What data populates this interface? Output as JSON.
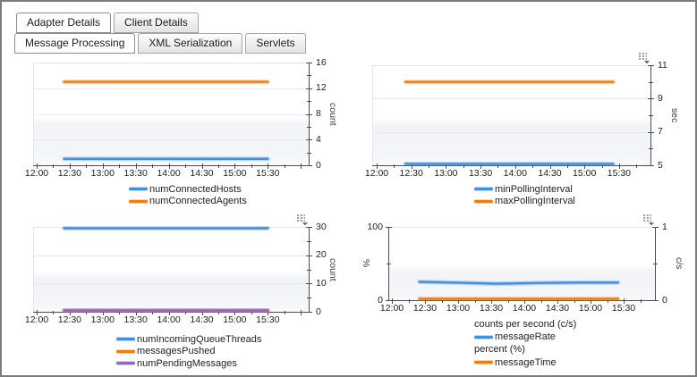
{
  "tabs_primary": [
    {
      "label": "Adapter Details",
      "active": true
    },
    {
      "label": "Client Details",
      "active": false
    }
  ],
  "tabs_secondary": [
    {
      "label": "Message Processing",
      "active": true
    },
    {
      "label": "XML Serialization",
      "active": false
    },
    {
      "label": "Servlets",
      "active": false
    }
  ],
  "colors": {
    "series_blue": "#4090e2",
    "series_orange": "#ee7d0e",
    "series_purple": "#8d68c5",
    "axis": "#4d4d4d",
    "grid": "#e7e9ed",
    "plot_band": "#f2f4f8",
    "text": "#222222"
  },
  "chart_data": [
    {
      "type": "line",
      "position": "top-left",
      "x_tick_labels": [
        "12:00",
        "12:30",
        "13:00",
        "13:30",
        "14:00",
        "14:30",
        "15:00",
        "15:30"
      ],
      "x_range": [
        "12:00",
        "16:00"
      ],
      "y_axes": [
        {
          "side": "right",
          "label": "count",
          "min": 0,
          "max": 16,
          "major_ticks": [
            0,
            4,
            8,
            12,
            16
          ],
          "minor_step": 2
        }
      ],
      "series": [
        {
          "name": "numConnectedHosts",
          "color": "#4090e2",
          "axis": "right",
          "value": 1,
          "x_start": "12:25",
          "x_end": "15:30"
        },
        {
          "name": "numConnectedAgents",
          "color": "#ee7d0e",
          "axis": "right",
          "value": 13,
          "x_start": "12:25",
          "x_end": "15:30"
        }
      ],
      "options_icon": false
    },
    {
      "type": "line",
      "position": "top-right",
      "x_tick_labels": [
        "12:00",
        "12:30",
        "13:00",
        "13:30",
        "14:00",
        "14:30",
        "15:00",
        "15:30"
      ],
      "x_range": [
        "12:00",
        "16:00"
      ],
      "y_axes": [
        {
          "side": "right",
          "label": "sec",
          "min": 5,
          "max": 11,
          "major_ticks": [
            5,
            7,
            9,
            11
          ],
          "minor_step": 1
        }
      ],
      "series": [
        {
          "name": "minPollingInterval",
          "color": "#4090e2",
          "axis": "right",
          "value": 5,
          "x_start": "12:25",
          "x_end": "15:25"
        },
        {
          "name": "maxPollingInterval",
          "color": "#ee7d0e",
          "axis": "right",
          "value": 10,
          "x_start": "12:25",
          "x_end": "15:25"
        }
      ],
      "options_icon": true
    },
    {
      "type": "line",
      "position": "bottom-left",
      "x_tick_labels": [
        "12:00",
        "12:30",
        "13:00",
        "13:30",
        "14:00",
        "14:30",
        "15:00",
        "15:30"
      ],
      "x_range": [
        "12:00",
        "16:00"
      ],
      "y_axes": [
        {
          "side": "right",
          "label": "count",
          "min": 0,
          "max": 30,
          "major_ticks": [
            0,
            10,
            20,
            30
          ],
          "minor_step": 5
        }
      ],
      "series": [
        {
          "name": "numIncomingQueueThreads",
          "color": "#4090e2",
          "axis": "right",
          "value": 30,
          "x_start": "12:25",
          "x_end": "15:30"
        },
        {
          "name": "messagesPushed",
          "color": "#ee7d0e",
          "axis": "right",
          "value": 0,
          "x_start": "12:25",
          "x_end": "15:30"
        },
        {
          "name": "numPendingMessages",
          "color": "#8d68c5",
          "axis": "right",
          "value": 0,
          "x_start": "12:25",
          "x_end": "15:30"
        }
      ],
      "options_icon": true
    },
    {
      "type": "line",
      "position": "bottom-right",
      "x_tick_labels": [
        "12:00",
        "12:30",
        "13:00",
        "13:30",
        "14:00",
        "14:30",
        "15:00",
        "15:30"
      ],
      "x_range": [
        "12:00",
        "16:00"
      ],
      "y_axes": [
        {
          "side": "left",
          "label": "%",
          "min": 0,
          "max": 100,
          "major_ticks": [
            0,
            100
          ],
          "minor_step": 50
        },
        {
          "side": "right",
          "label": "c/s",
          "min": 0,
          "max": 1,
          "major_ticks": [
            0,
            1
          ],
          "minor_step": 0.5
        }
      ],
      "series": [
        {
          "name": "messageRate",
          "legend_group": "counts per second (c/s)",
          "color": "#4090e2",
          "axis": "right",
          "points": [
            [
              "12:25",
              0.25
            ],
            [
              "12:55",
              0.24
            ],
            [
              "13:35",
              0.225
            ],
            [
              "14:15",
              0.235
            ],
            [
              "14:50",
              0.24
            ],
            [
              "15:25",
              0.24
            ]
          ]
        },
        {
          "name": "messageTime",
          "legend_group": "percent (%)",
          "color": "#ee7d0e",
          "axis": "left",
          "value": 1,
          "x_start": "12:25",
          "x_end": "15:25"
        }
      ],
      "options_icon": true
    }
  ]
}
